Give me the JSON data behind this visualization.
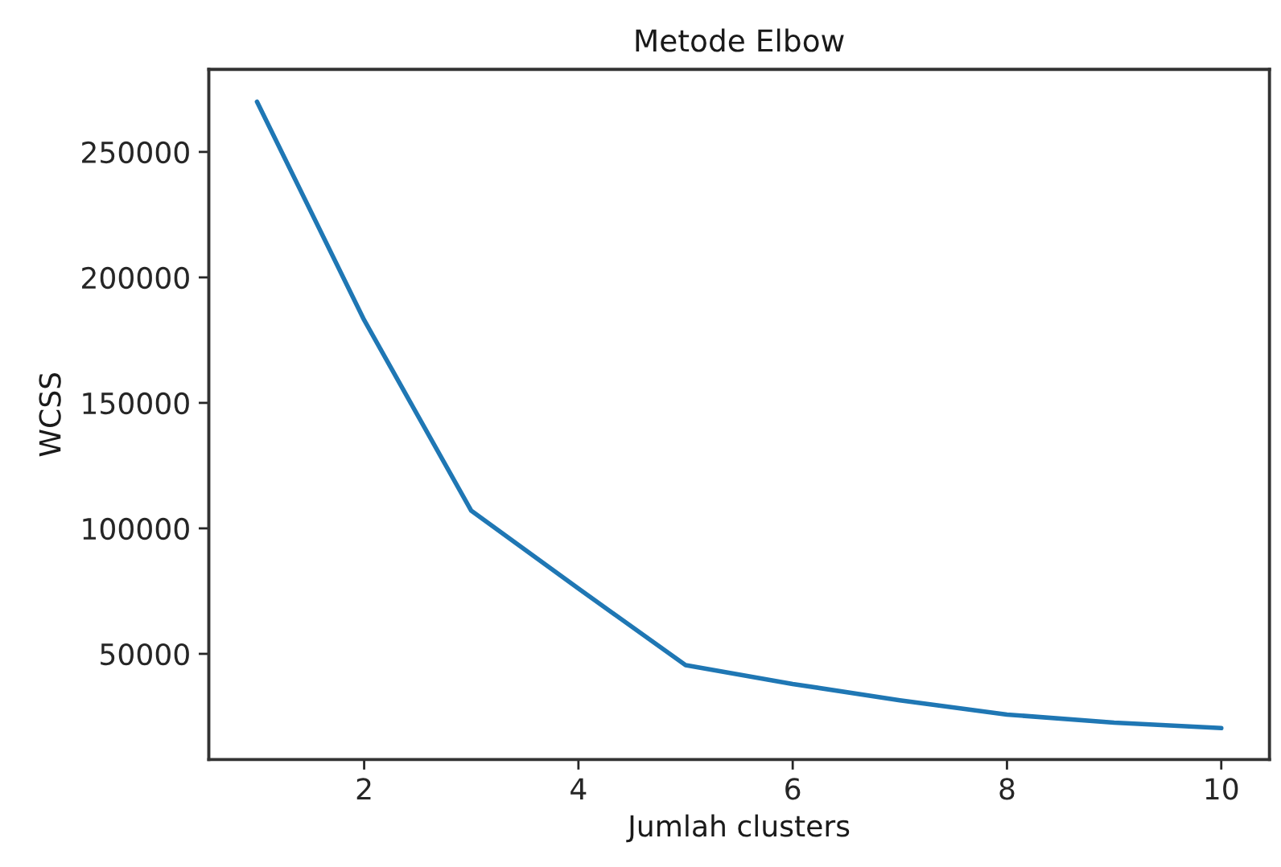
{
  "chart_data": {
    "type": "line",
    "title": "Metode Elbow",
    "xlabel": "Jumlah clusters",
    "ylabel": "WCSS",
    "x": [
      1,
      2,
      3,
      4,
      5,
      6,
      7,
      8,
      9,
      10
    ],
    "series": [
      {
        "color": "#1f77b4",
        "values": [
          270000,
          183000,
          107000,
          76000,
          45500,
          38000,
          31500,
          25800,
          22600,
          20400
        ]
      }
    ],
    "xlim": [
      0.55,
      10.45
    ],
    "ylim": [
      7900,
      282900
    ],
    "xticks": [
      2,
      4,
      6,
      8,
      10
    ],
    "yticks": [
      50000,
      100000,
      150000,
      200000,
      250000
    ],
    "grid": false
  }
}
